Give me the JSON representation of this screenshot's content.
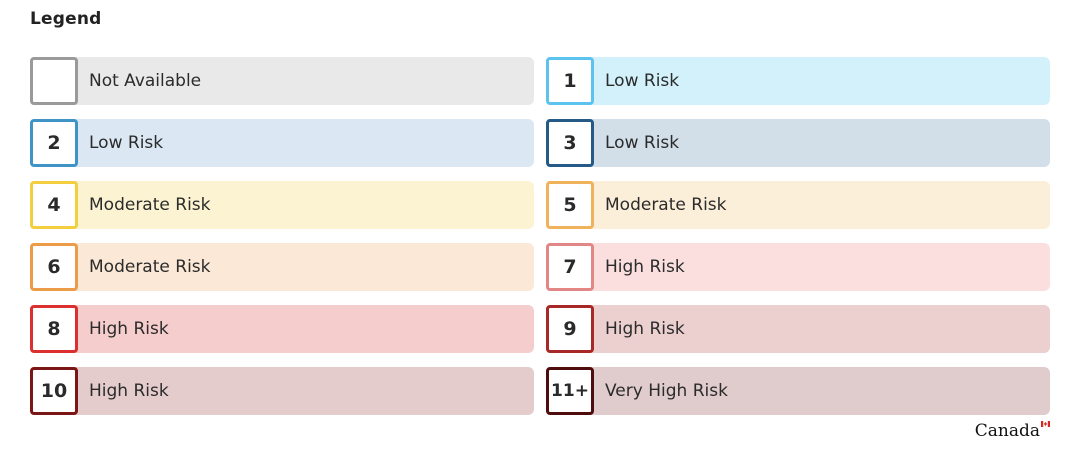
{
  "legend": {
    "title": "Legend",
    "items": [
      {
        "code": "",
        "label": "Not Available",
        "border": "#9a9a9a",
        "bg": "#e9e9e9"
      },
      {
        "code": "1",
        "label": "Low Risk",
        "border": "#5cc3ee",
        "bg": "#d3f1fb"
      },
      {
        "code": "2",
        "label": "Low Risk",
        "border": "#3f94c5",
        "bg": "#dbe8f3"
      },
      {
        "code": "3",
        "label": "Low Risk",
        "border": "#255a86",
        "bg": "#d2dee8"
      },
      {
        "code": "4",
        "label": "Moderate Risk",
        "border": "#f3ce3e",
        "bg": "#fcf3d3"
      },
      {
        "code": "5",
        "label": "Moderate Risk",
        "border": "#f0b25a",
        "bg": "#fbefd9"
      },
      {
        "code": "6",
        "label": "Moderate Risk",
        "border": "#ec9c49",
        "bg": "#fbe8d6"
      },
      {
        "code": "7",
        "label": "High Risk",
        "border": "#e28686",
        "bg": "#fbdfdf"
      },
      {
        "code": "8",
        "label": "High Risk",
        "border": "#dc2f2f",
        "bg": "#f6cdcd"
      },
      {
        "code": "9",
        "label": "High Risk",
        "border": "#a82727",
        "bg": "#ecd0d0"
      },
      {
        "code": "10",
        "label": "High Risk",
        "border": "#7a1616",
        "bg": "#e5cccc"
      },
      {
        "code": "11+",
        "label": "Very High Risk",
        "border": "#4e0c0c",
        "bg": "#e0cccc"
      }
    ]
  },
  "footer": {
    "wordmark": "Canada",
    "flag_icon": "canada-flag-icon"
  }
}
